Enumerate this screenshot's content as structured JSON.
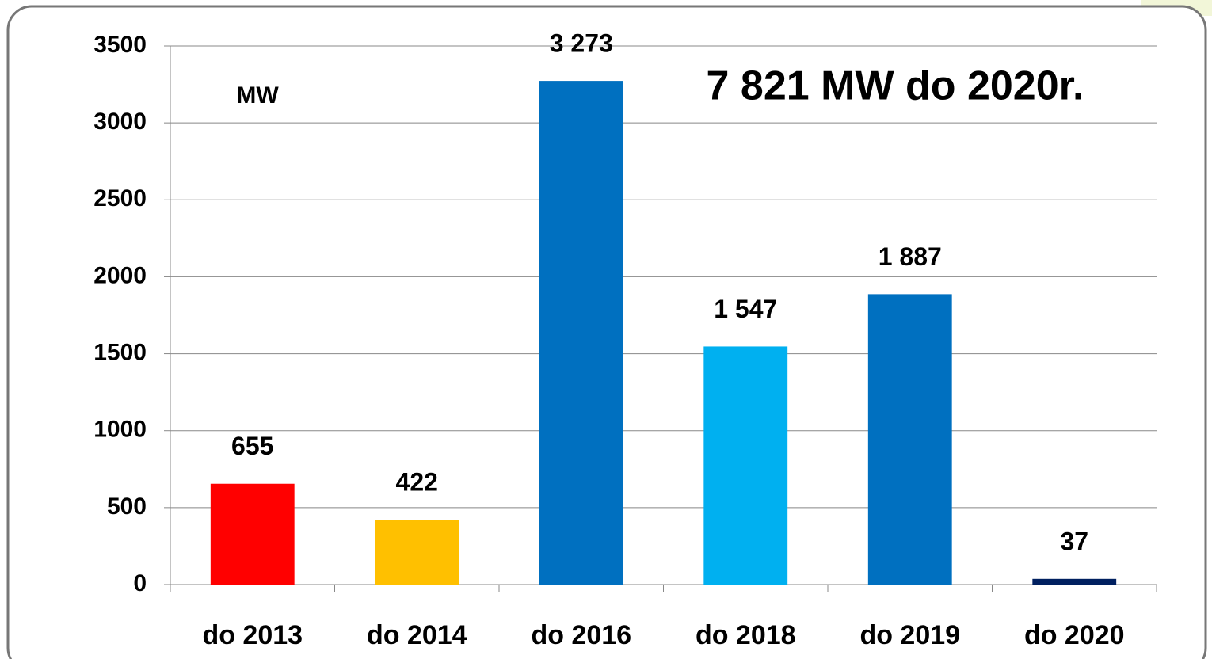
{
  "chart_data": {
    "type": "bar",
    "annotations": [
      "MW",
      "7 821 MW do 2020r."
    ],
    "categories": [
      "do 2013",
      "do 2014",
      "do 2016",
      "do 2018",
      "do 2019",
      "do 2020"
    ],
    "values": [
      655,
      422,
      3273,
      1547,
      1887,
      37
    ],
    "value_labels": [
      "655",
      "422",
      "3 273",
      "1 547",
      "1 887",
      "37"
    ],
    "colors": [
      "#ff0000",
      "#ffc000",
      "#0070c0",
      "#00b0f0",
      "#0070c0",
      "#002060"
    ],
    "ylim": [
      0,
      3500
    ],
    "yticks": [
      0,
      500,
      1000,
      1500,
      2000,
      2500,
      3000,
      3500
    ],
    "grid": true
  }
}
